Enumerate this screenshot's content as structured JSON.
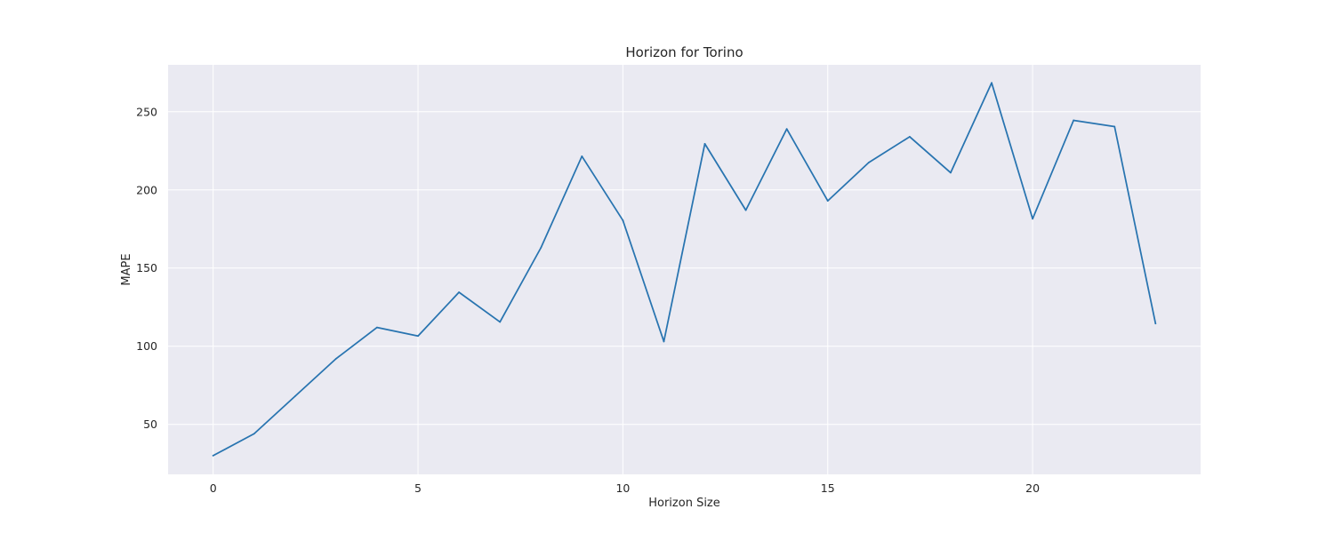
{
  "chart_data": {
    "type": "line",
    "title": "Horizon for Torino",
    "xlabel": "Horizon Size",
    "ylabel": "MAPE",
    "xlim": [
      -1.1,
      24.1
    ],
    "ylim": [
      18,
      280
    ],
    "xticks": [
      0,
      5,
      10,
      15,
      20
    ],
    "yticks": [
      50,
      100,
      150,
      200,
      250
    ],
    "grid": true,
    "legend": "none",
    "series": [
      {
        "color": "#2874b0",
        "x": [
          0,
          1,
          2,
          3,
          4,
          5,
          6,
          7,
          8,
          9,
          10,
          11,
          12,
          13,
          14,
          15,
          16,
          17,
          18,
          19,
          20,
          21,
          22,
          23
        ],
        "y": [
          30,
          44,
          68,
          92,
          112,
          106.5,
          134.5,
          115.5,
          163,
          221.5,
          180.5,
          103,
          229.5,
          187,
          239,
          193,
          217.5,
          234,
          211,
          268.5,
          181.5,
          244.5,
          240.5,
          114.5
        ]
      }
    ]
  },
  "style": {
    "plot_background": "#eaeaf2",
    "grid_color": "#ffffff",
    "text_color": "#262626"
  }
}
